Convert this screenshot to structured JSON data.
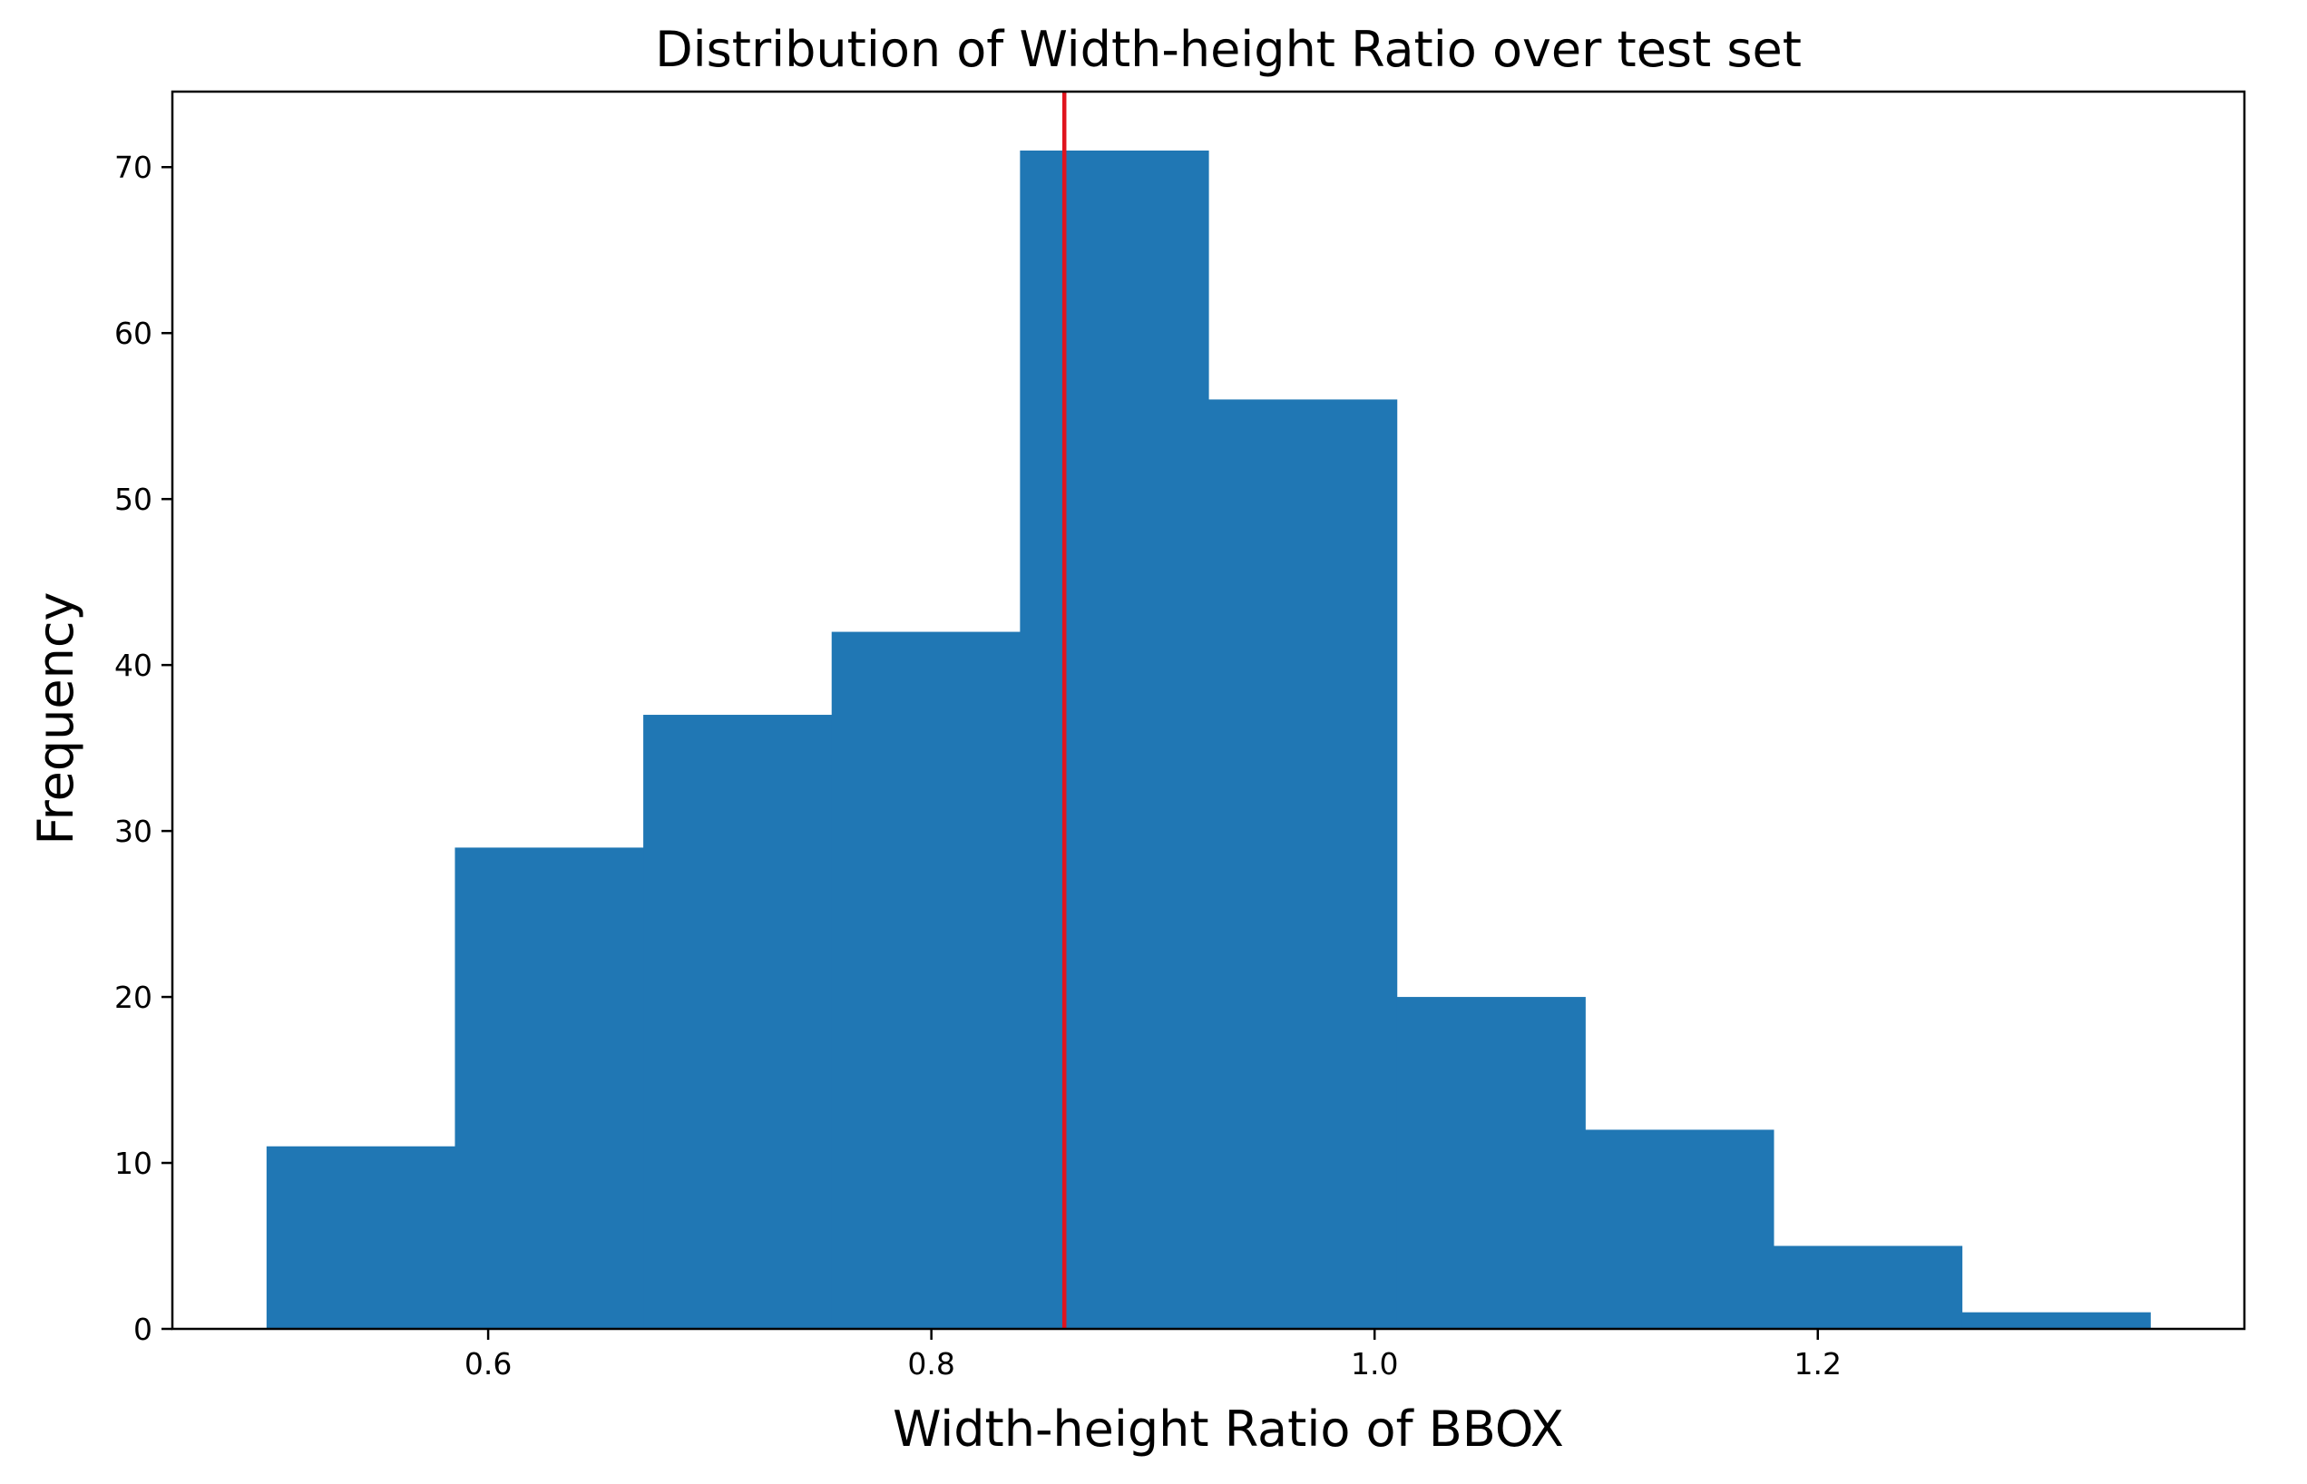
{
  "chart_data": {
    "type": "bar",
    "title": "Distribution of Width-height Ratio over test set",
    "xlabel": "Width-height Ratio of BBOX",
    "ylabel": "Frequency",
    "bins": [
      {
        "x0": 0.5,
        "x1": 0.585,
        "value": 11
      },
      {
        "x0": 0.585,
        "x1": 0.67,
        "value": 29
      },
      {
        "x0": 0.67,
        "x1": 0.755,
        "value": 37
      },
      {
        "x0": 0.755,
        "x1": 0.84,
        "value": 42
      },
      {
        "x0": 0.84,
        "x1": 0.925,
        "value": 71
      },
      {
        "x0": 0.925,
        "x1": 1.01,
        "value": 56
      },
      {
        "x0": 1.01,
        "x1": 1.095,
        "value": 20
      },
      {
        "x0": 1.095,
        "x1": 1.18,
        "value": 12
      },
      {
        "x0": 1.18,
        "x1": 1.265,
        "value": 5
      },
      {
        "x0": 1.265,
        "x1": 1.35,
        "value": 1
      }
    ],
    "xlim": [
      0.4575,
      1.3925
    ],
    "ylim": [
      0,
      74.55
    ],
    "xticks": [
      0.6,
      0.8,
      1.0,
      1.2
    ],
    "xtick_labels": [
      "0.6",
      "0.8",
      "1.0",
      "1.2"
    ],
    "yticks": [
      0,
      10,
      20,
      30,
      40,
      50,
      60,
      70
    ],
    "ytick_labels": [
      "0",
      "10",
      "20",
      "30",
      "40",
      "50",
      "60",
      "70"
    ],
    "reference_line": {
      "x": 0.86,
      "color": "#e0141e"
    },
    "bar_color": "#2077b4",
    "grid": false
  }
}
